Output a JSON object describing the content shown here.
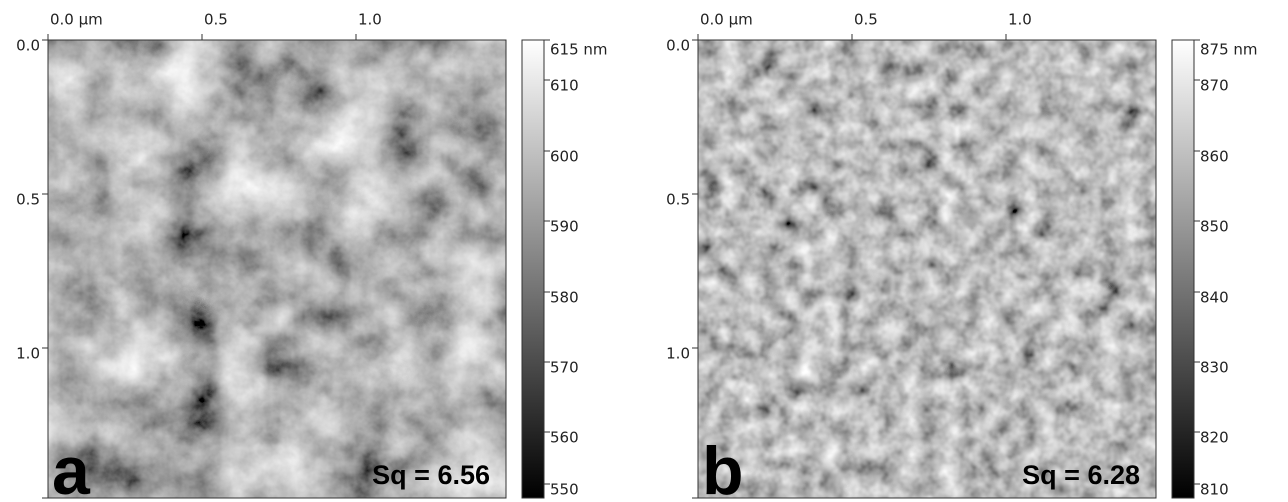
{
  "panels": [
    {
      "letter": "a",
      "x_axis": [
        "0.0 µm",
        "0.5",
        "1.0"
      ],
      "y_axis": [
        "0.0",
        "0.5",
        "1.0"
      ],
      "colorbar": [
        "615 nm",
        "610",
        "600",
        "590",
        "580",
        "570",
        "560",
        "550"
      ],
      "roughness": "Sq = 6.56"
    },
    {
      "letter": "b",
      "x_axis": [
        "0.0 µm",
        "0.5",
        "1.0"
      ],
      "y_axis": [
        "0.0",
        "0.5",
        "1.0"
      ],
      "colorbar": [
        "875 nm",
        "870",
        "860",
        "850",
        "840",
        "830",
        "820",
        "810"
      ],
      "roughness": "Sq = 6.28"
    }
  ]
}
